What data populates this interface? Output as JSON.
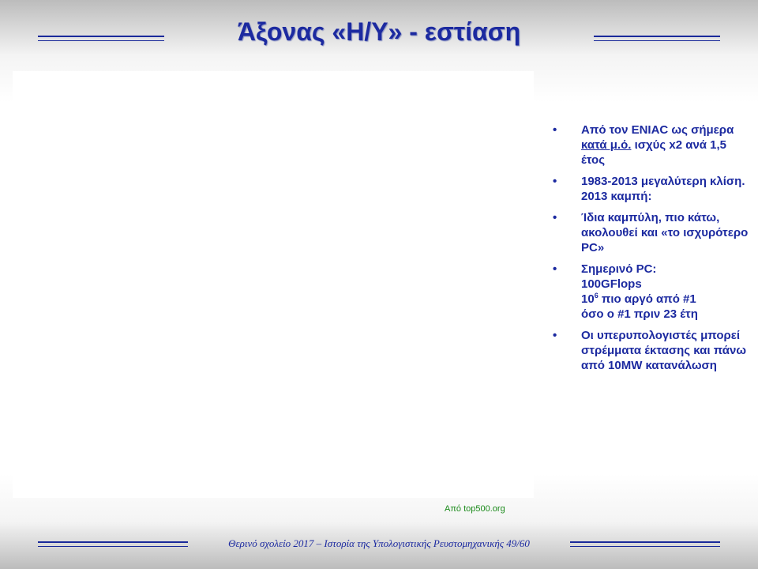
{
  "slide": {
    "title": "Άξονας «Η/Υ» - εστίαση",
    "footer": "Θερινό σχολείο 2017 – Ιστορία της Υπολογιστικής Ρευστομηχανικής   49/60",
    "credit": "Από top500.org"
  },
  "bullets": [
    {
      "parts": [
        "Από τον ENIAC ως σήμερα ",
        "κατά μ.ό.",
        " ισχύς x2 ανά 1,5 έτος"
      ]
    },
    {
      "text": "1983-2013 μεγαλύτερη κλίση.   2013 καμπή:"
    },
    {
      "text": "Ίδια καμπύλη, πιο κάτω, ακολουθεί και «το ισχυρότερο PC»"
    },
    {
      "lines": [
        "Σημερινό PC:",
        "100GFlops"
      ],
      "pow_base": "10",
      "pow_exp": "6",
      "pow_tail": " πιο αργό από #1",
      "last_line": "όσο ο #1 πριν 23 έτη"
    },
    {
      "text": "Οι υπερυπολογιστές μπορεί στρέμματα έκτασης και πάνω από 10MW κατανάλωση"
    }
  ]
}
